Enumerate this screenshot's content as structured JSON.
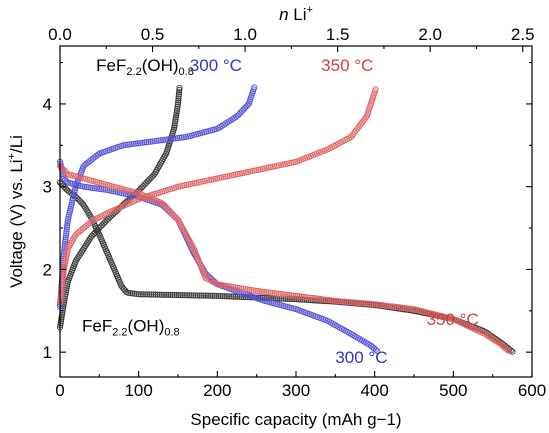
{
  "chart_data": {
    "type": "scatter",
    "x_axis": {
      "label": "Specific capacity (mAh g−1)",
      "lim": [
        0,
        600
      ],
      "ticks": [
        0,
        100,
        200,
        300,
        400,
        500,
        600
      ]
    },
    "top_axis": {
      "label_italic": "n",
      "label_rest": " Li",
      "label_sup": "+",
      "lim": [
        0,
        2.55
      ],
      "ticks": [
        0.0,
        0.5,
        1.0,
        1.5,
        2.0,
        2.5
      ],
      "tick_labels": [
        "0.0",
        "0.5",
        "1.0",
        "1.5",
        "2.0",
        "2.5"
      ]
    },
    "y_axis": {
      "label_main": "Voltage (V) vs. Li",
      "label_sup": "+",
      "label_tail": "/Li",
      "lim": [
        0.7,
        4.7
      ],
      "ticks": [
        1,
        2,
        3,
        4
      ]
    },
    "series": [
      {
        "key": "fef_discharge",
        "color": "#3a3a3a",
        "points": [
          [
            0,
            3.05
          ],
          [
            5,
            3.0
          ],
          [
            10,
            2.95
          ],
          [
            20,
            2.88
          ],
          [
            30,
            2.78
          ],
          [
            40,
            2.62
          ],
          [
            50,
            2.42
          ],
          [
            60,
            2.2
          ],
          [
            70,
            1.98
          ],
          [
            78,
            1.8
          ],
          [
            85,
            1.72
          ],
          [
            100,
            1.7
          ],
          [
            150,
            1.69
          ],
          [
            200,
            1.68
          ],
          [
            250,
            1.66
          ],
          [
            300,
            1.64
          ],
          [
            350,
            1.61
          ],
          [
            400,
            1.57
          ],
          [
            450,
            1.5
          ],
          [
            500,
            1.4
          ],
          [
            540,
            1.25
          ],
          [
            560,
            1.12
          ],
          [
            576,
            1.0
          ]
        ]
      },
      {
        "key": "fef_charge",
        "color": "#3a3a3a",
        "points": [
          [
            0,
            1.3
          ],
          [
            5,
            1.6
          ],
          [
            10,
            1.85
          ],
          [
            20,
            2.1
          ],
          [
            40,
            2.4
          ],
          [
            60,
            2.6
          ],
          [
            80,
            2.78
          ],
          [
            100,
            2.95
          ],
          [
            120,
            3.15
          ],
          [
            135,
            3.4
          ],
          [
            145,
            3.7
          ],
          [
            150,
            4.0
          ],
          [
            152,
            4.2
          ]
        ]
      },
      {
        "key": "s300_discharge",
        "color": "#5555d6",
        "points": [
          [
            0,
            3.3
          ],
          [
            5,
            3.1
          ],
          [
            10,
            3.05
          ],
          [
            30,
            3.0
          ],
          [
            60,
            2.96
          ],
          [
            100,
            2.88
          ],
          [
            130,
            2.78
          ],
          [
            150,
            2.6
          ],
          [
            170,
            2.2
          ],
          [
            185,
            1.95
          ],
          [
            200,
            1.82
          ],
          [
            230,
            1.72
          ],
          [
            260,
            1.62
          ],
          [
            300,
            1.52
          ],
          [
            340,
            1.38
          ],
          [
            370,
            1.22
          ],
          [
            395,
            1.08
          ],
          [
            405,
            1.0
          ]
        ]
      },
      {
        "key": "s300_charge",
        "color": "#5555d6",
        "points": [
          [
            0,
            1.55
          ],
          [
            5,
            2.2
          ],
          [
            10,
            2.6
          ],
          [
            20,
            3.0
          ],
          [
            30,
            3.25
          ],
          [
            50,
            3.4
          ],
          [
            80,
            3.5
          ],
          [
            120,
            3.55
          ],
          [
            160,
            3.6
          ],
          [
            200,
            3.7
          ],
          [
            225,
            3.85
          ],
          [
            240,
            4.0
          ],
          [
            247,
            4.2
          ]
        ]
      },
      {
        "key": "s350_discharge",
        "color": "#e06666",
        "points": [
          [
            0,
            3.25
          ],
          [
            10,
            3.15
          ],
          [
            30,
            3.1
          ],
          [
            60,
            3.02
          ],
          [
            100,
            2.92
          ],
          [
            130,
            2.8
          ],
          [
            150,
            2.6
          ],
          [
            170,
            2.25
          ],
          [
            185,
            1.9
          ],
          [
            200,
            1.82
          ],
          [
            250,
            1.74
          ],
          [
            300,
            1.68
          ],
          [
            350,
            1.62
          ],
          [
            400,
            1.58
          ],
          [
            450,
            1.52
          ],
          [
            500,
            1.4
          ],
          [
            540,
            1.22
          ],
          [
            560,
            1.1
          ],
          [
            572,
            1.0
          ]
        ]
      },
      {
        "key": "s350_charge",
        "color": "#e06666",
        "points": [
          [
            0,
            1.6
          ],
          [
            5,
            2.0
          ],
          [
            10,
            2.25
          ],
          [
            20,
            2.42
          ],
          [
            40,
            2.58
          ],
          [
            60,
            2.68
          ],
          [
            100,
            2.85
          ],
          [
            150,
            3.0
          ],
          [
            200,
            3.1
          ],
          [
            250,
            3.2
          ],
          [
            300,
            3.3
          ],
          [
            340,
            3.45
          ],
          [
            370,
            3.6
          ],
          [
            390,
            3.85
          ],
          [
            402,
            4.2
          ]
        ]
      }
    ],
    "annotations": [
      {
        "key": "ann_fef_top",
        "base": "FeF",
        "sub1": "2.2",
        "mid": "(OH)",
        "sub2": "0.8",
        "color": "#000000",
        "at": [
          46,
          4.4
        ]
      },
      {
        "key": "ann_300_top",
        "text": "300 °C",
        "color": "#3333cc",
        "at": [
          165,
          4.4
        ]
      },
      {
        "key": "ann_350_top",
        "text": "350 °C",
        "color": "#d04040",
        "at": [
          332,
          4.4
        ]
      },
      {
        "key": "ann_fef_bot",
        "base": "FeF",
        "sub1": "2.2",
        "mid": "(OH)",
        "sub2": "0.8",
        "color": "#000000",
        "at": [
          28,
          1.25
        ]
      },
      {
        "key": "ann_350_bot",
        "text": "350 °C",
        "color": "#d04040",
        "at": [
          466,
          1.33
        ]
      },
      {
        "key": "ann_300_bot",
        "text": "300 °C",
        "color": "#3333cc",
        "at": [
          350,
          0.87
        ]
      }
    ]
  }
}
